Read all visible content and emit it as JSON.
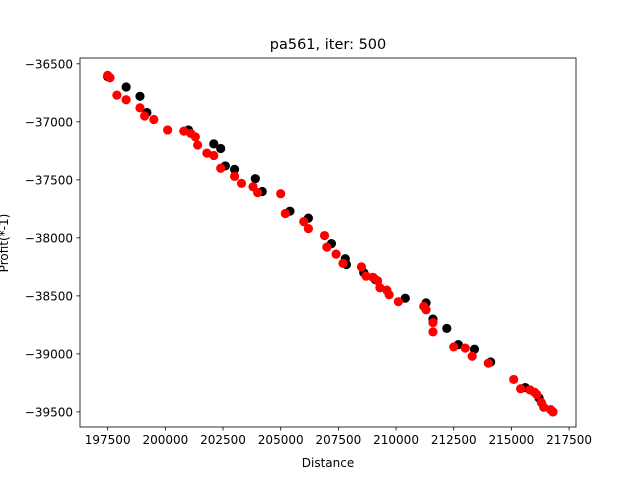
{
  "chart_data": {
    "type": "scatter",
    "title": "pa561, iter: 500",
    "xlabel": "Distance",
    "ylabel": "Profit(*-1)",
    "xlim": [
      196300,
      217800
    ],
    "ylim": [
      -39630,
      -36450
    ],
    "xticks": [
      197500,
      200000,
      202500,
      205000,
      207500,
      210000,
      212500,
      215000,
      217500
    ],
    "xtick_labels": [
      "197500",
      "200000",
      "202500",
      "205000",
      "207500",
      "210000",
      "212500",
      "215000",
      "217500"
    ],
    "yticks": [
      -36500,
      -37000,
      -37500,
      -38000,
      -38500,
      -39000,
      -39500
    ],
    "ytick_labels": [
      "−36500",
      "−37000",
      "−37500",
      "−38000",
      "−38500",
      "−39000",
      "−39500"
    ],
    "grid": false,
    "series": [
      {
        "color": "#000000",
        "points": [
          [
            197500,
            -36610
          ],
          [
            198300,
            -36700
          ],
          [
            198900,
            -36780
          ],
          [
            199200,
            -36920
          ],
          [
            201000,
            -37070
          ],
          [
            202100,
            -37190
          ],
          [
            202400,
            -37230
          ],
          [
            202600,
            -37380
          ],
          [
            203000,
            -37410
          ],
          [
            203900,
            -37490
          ],
          [
            204200,
            -37600
          ],
          [
            205400,
            -37770
          ],
          [
            206200,
            -37830
          ],
          [
            207200,
            -38050
          ],
          [
            207800,
            -38180
          ],
          [
            207850,
            -38230
          ],
          [
            208600,
            -38300
          ],
          [
            209100,
            -38360
          ],
          [
            210400,
            -38520
          ],
          [
            211300,
            -38560
          ],
          [
            211600,
            -38700
          ],
          [
            212200,
            -38780
          ],
          [
            212700,
            -38920
          ],
          [
            213400,
            -38960
          ],
          [
            214100,
            -39070
          ],
          [
            215600,
            -39290
          ],
          [
            216200,
            -39380
          ],
          [
            216800,
            -39500
          ]
        ]
      },
      {
        "color": "#ff0000",
        "points": [
          [
            197500,
            -36600
          ],
          [
            197600,
            -36620
          ],
          [
            197900,
            -36770
          ],
          [
            198300,
            -36810
          ],
          [
            198900,
            -36880
          ],
          [
            199100,
            -36950
          ],
          [
            199500,
            -36980
          ],
          [
            200100,
            -37070
          ],
          [
            200800,
            -37080
          ],
          [
            201100,
            -37100
          ],
          [
            201300,
            -37130
          ],
          [
            201400,
            -37200
          ],
          [
            201800,
            -37270
          ],
          [
            202100,
            -37290
          ],
          [
            202400,
            -37400
          ],
          [
            203000,
            -37470
          ],
          [
            203300,
            -37530
          ],
          [
            203800,
            -37560
          ],
          [
            204000,
            -37610
          ],
          [
            205000,
            -37620
          ],
          [
            205200,
            -37790
          ],
          [
            206000,
            -37860
          ],
          [
            206200,
            -37920
          ],
          [
            206900,
            -37980
          ],
          [
            207000,
            -38080
          ],
          [
            207400,
            -38140
          ],
          [
            207700,
            -38220
          ],
          [
            208500,
            -38250
          ],
          [
            208700,
            -38330
          ],
          [
            209000,
            -38340
          ],
          [
            209200,
            -38370
          ],
          [
            209300,
            -38430
          ],
          [
            209600,
            -38450
          ],
          [
            209700,
            -38490
          ],
          [
            210100,
            -38550
          ],
          [
            211200,
            -38590
          ],
          [
            211300,
            -38620
          ],
          [
            211600,
            -38730
          ],
          [
            211600,
            -38810
          ],
          [
            212500,
            -38940
          ],
          [
            213000,
            -38950
          ],
          [
            213300,
            -39020
          ],
          [
            214000,
            -39080
          ],
          [
            215100,
            -39220
          ],
          [
            215400,
            -39300
          ],
          [
            215800,
            -39310
          ],
          [
            216000,
            -39330
          ],
          [
            216100,
            -39350
          ],
          [
            216300,
            -39420
          ],
          [
            216400,
            -39460
          ],
          [
            216700,
            -39480
          ],
          [
            216800,
            -39500
          ]
        ]
      }
    ]
  }
}
